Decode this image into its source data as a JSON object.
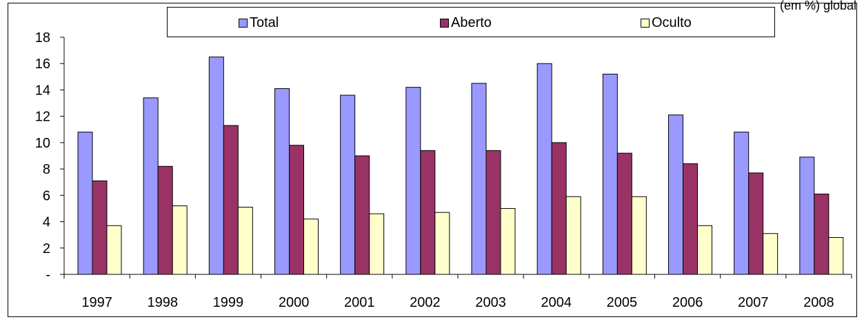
{
  "corner_text": "(em %) global",
  "chart_data": {
    "type": "bar",
    "categories": [
      "1997",
      "1998",
      "1999",
      "2000",
      "2001",
      "2002",
      "2003",
      "2004",
      "2005",
      "2006",
      "2007",
      "2008"
    ],
    "series": [
      {
        "name": "Total",
        "color": "#9999ff",
        "values": [
          10.8,
          13.4,
          16.5,
          14.1,
          13.6,
          14.2,
          14.5,
          16.0,
          15.2,
          12.1,
          10.8,
          8.9
        ]
      },
      {
        "name": "Aberto",
        "color": "#993366",
        "values": [
          7.1,
          8.2,
          11.3,
          9.8,
          9.0,
          9.4,
          9.4,
          10.0,
          9.2,
          8.4,
          7.7,
          6.1
        ]
      },
      {
        "name": "Oculto",
        "color": "#ffffcc",
        "values": [
          3.7,
          5.2,
          5.1,
          4.2,
          4.6,
          4.7,
          5.0,
          5.9,
          5.9,
          3.7,
          3.1,
          2.8
        ]
      }
    ],
    "ylim": [
      0,
      18
    ],
    "yticks": [
      {
        "value": 0,
        "label": "-"
      },
      {
        "value": 2,
        "label": "2"
      },
      {
        "value": 4,
        "label": "4"
      },
      {
        "value": 6,
        "label": "6"
      },
      {
        "value": 8,
        "label": "8"
      },
      {
        "value": 10,
        "label": "10"
      },
      {
        "value": 12,
        "label": "12"
      },
      {
        "value": 14,
        "label": "14"
      },
      {
        "value": 16,
        "label": "16"
      },
      {
        "value": 18,
        "label": "18"
      }
    ],
    "grid": false,
    "legend_position": "top-center",
    "title": "",
    "xlabel": "",
    "ylabel": ""
  }
}
